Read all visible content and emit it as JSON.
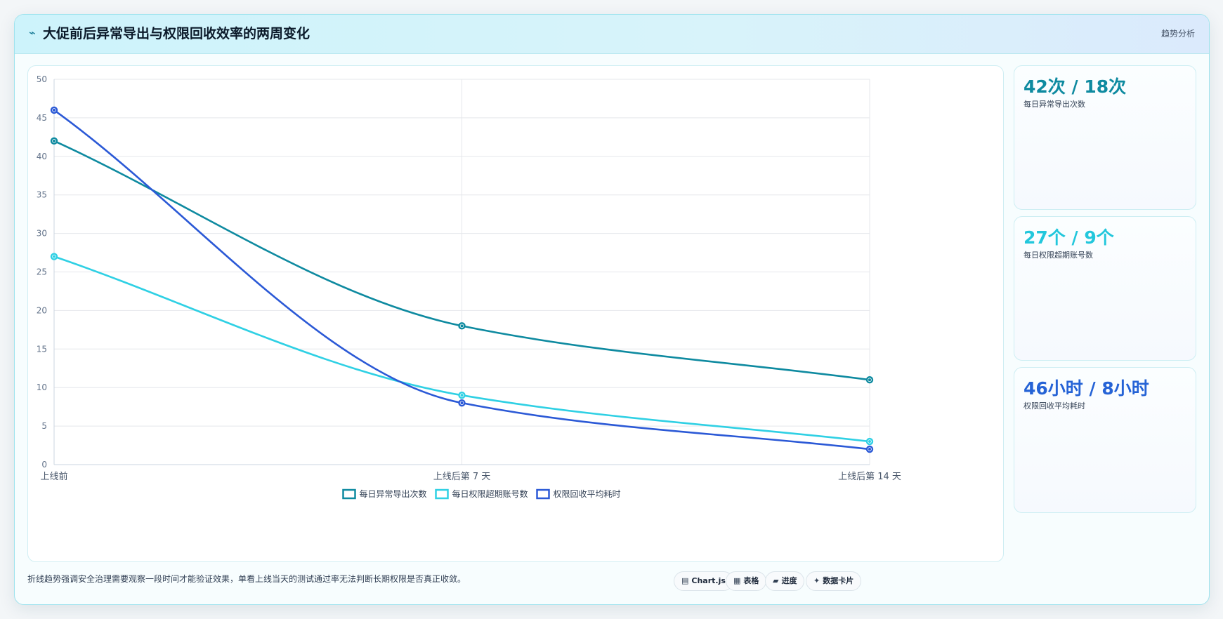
{
  "header": {
    "icon": "lightning-icon",
    "title": "大促前后异常导出与权限回收效率的两周变化",
    "tag": "趋势分析"
  },
  "kpis": [
    {
      "value": "42次 / 18次",
      "label": "每日异常导出次数",
      "color": "#0e8aa0"
    },
    {
      "value": "27个 / 9个",
      "label": "每日权限超期账号数",
      "color": "#22c7dc"
    },
    {
      "value": "46小时 / 8小时",
      "label": "权限回收平均耗时",
      "color": "#2563d6"
    }
  ],
  "footer": {
    "note": "折线趋势强调安全治理需要观察一段时间才能验证效果，单看上线当天的测试通过率无法判断长期权限是否真正收敛。",
    "chips": [
      {
        "icon": "chart-icon",
        "glyph": "▤",
        "label": "Chart.js"
      },
      {
        "icon": "table-icon",
        "glyph": "▦",
        "label": "表格"
      },
      {
        "icon": "progress-icon",
        "glyph": "▰",
        "label": "进度"
      },
      {
        "icon": "sparkle-icon",
        "glyph": "✦",
        "label": "数据卡片"
      }
    ]
  },
  "chart_data": {
    "type": "line",
    "categories": [
      "上线前",
      "上线后第 7 天",
      "上线后第 14 天"
    ],
    "ylim": [
      0,
      50
    ],
    "yticks": [
      0,
      5,
      10,
      15,
      20,
      25,
      30,
      35,
      40,
      45,
      50
    ],
    "grid": true,
    "legend": "bottom",
    "series": [
      {
        "name": "每日异常导出次数",
        "values": [
          42,
          18,
          11
        ],
        "color": "#0e8aa0"
      },
      {
        "name": "每日权限超期账号数",
        "values": [
          27,
          9,
          3
        ],
        "color": "#2fd0e4"
      },
      {
        "name": "权限回收平均耗时",
        "values": [
          46,
          8,
          2
        ],
        "color": "#2b59d6"
      }
    ]
  }
}
